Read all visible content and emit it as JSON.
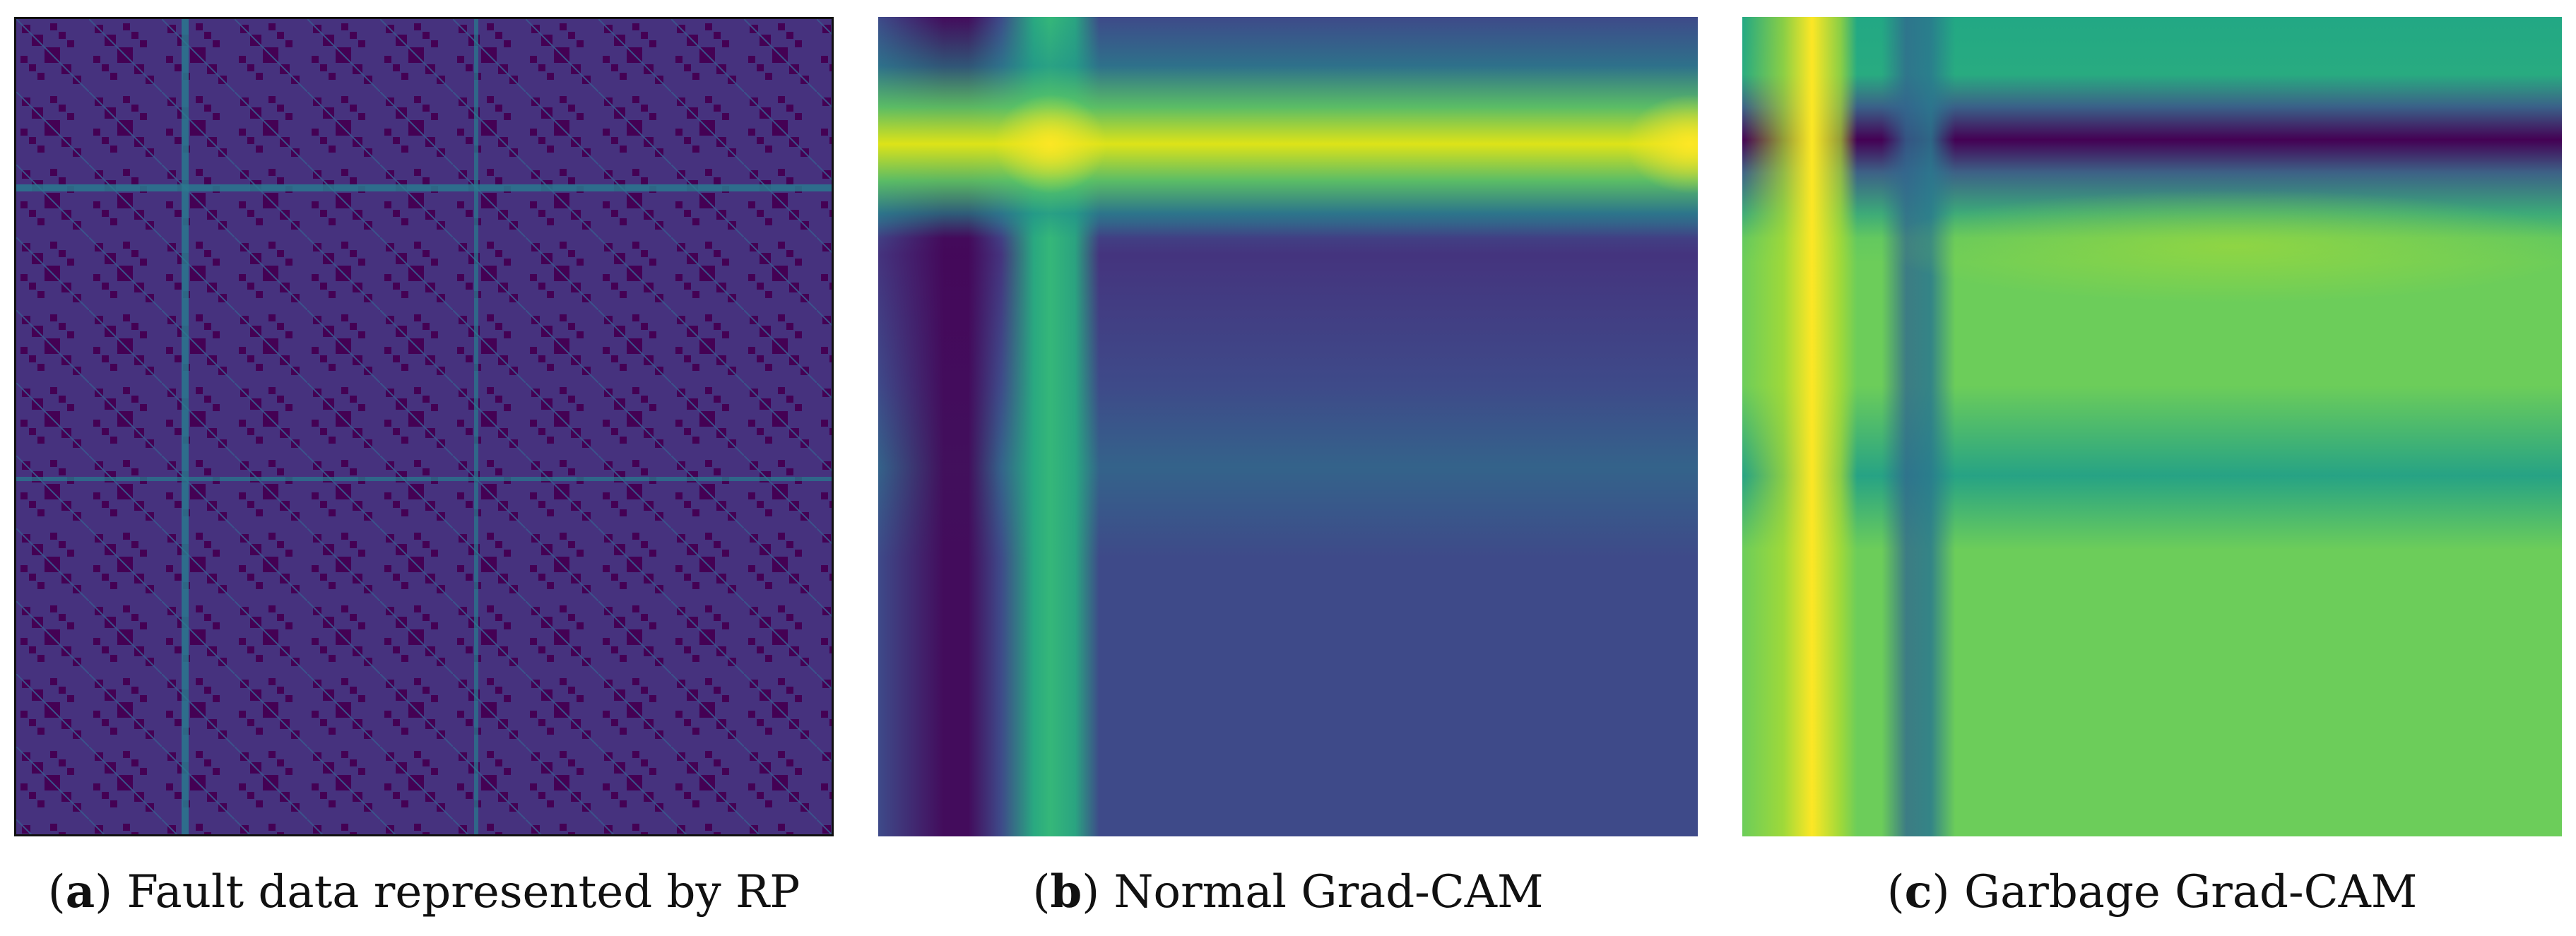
{
  "figure": {
    "panels": [
      {
        "id": "a",
        "letter": "a",
        "caption": "Fault data represented by RP",
        "image": "recurrence-plot",
        "colormap": "viridis"
      },
      {
        "id": "b",
        "letter": "b",
        "caption": "Normal Grad-CAM",
        "image": "grad-cam-heatmap",
        "colormap": "viridis"
      },
      {
        "id": "c",
        "letter": "c",
        "caption": "Garbage Grad-CAM",
        "image": "grad-cam-heatmap",
        "colormap": "viridis"
      }
    ],
    "colors": {
      "viridis_dark": "#440154",
      "viridis_purple": "#46327e",
      "viridis_blue": "#3e4a89",
      "viridis_teal": "#21918c",
      "viridis_green": "#6ccd5a",
      "viridis_yellow": "#e4e419"
    }
  }
}
